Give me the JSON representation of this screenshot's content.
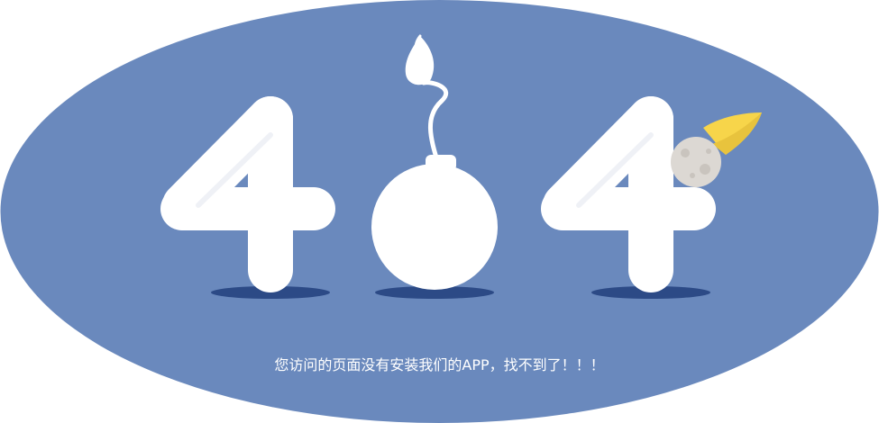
{
  "page": {
    "message": "您访问的页面没有安装我们的APP，找不到了！！！"
  },
  "colors": {
    "background_ellipse": "#6a89bd",
    "shadow": "#2c4a86",
    "glyph_white": "#ffffff",
    "rocket_yellow": "#f7d54a",
    "moon_grey": "#dcd8d3"
  },
  "icons": {
    "digit_left": "digit-four-icon",
    "digit_middle": "bomb-zero-icon",
    "digit_right": "digit-four-icon",
    "rocket": "rocket-flame-icon",
    "moon": "moon-icon"
  }
}
